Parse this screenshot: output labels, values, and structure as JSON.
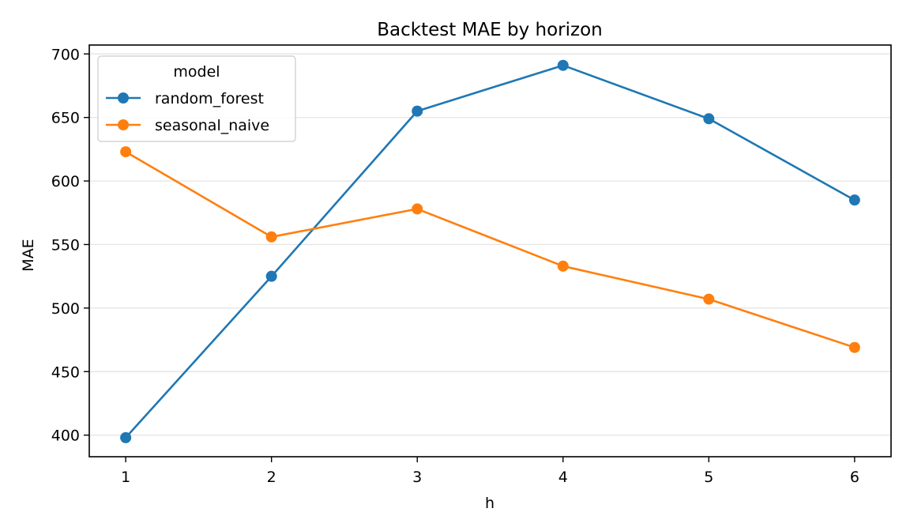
{
  "chart_data": {
    "type": "line",
    "title": "Backtest MAE by horizon",
    "xlabel": "h",
    "ylabel": "MAE",
    "x": [
      1,
      2,
      3,
      4,
      5,
      6
    ],
    "xlim": [
      0.75,
      6.25
    ],
    "ylim": [
      383,
      707
    ],
    "yticks": [
      400,
      450,
      500,
      550,
      600,
      650,
      700
    ],
    "grid": "horizontal",
    "legend": {
      "title": "model",
      "position": "top-left"
    },
    "series": [
      {
        "name": "random_forest",
        "color": "#1f77b4",
        "marker": "circle",
        "values": [
          398,
          525,
          655,
          691,
          649,
          585
        ]
      },
      {
        "name": "seasonal_naive",
        "color": "#ff7f0e",
        "marker": "circle",
        "values": [
          623,
          556,
          578,
          533,
          507,
          469
        ]
      }
    ]
  }
}
